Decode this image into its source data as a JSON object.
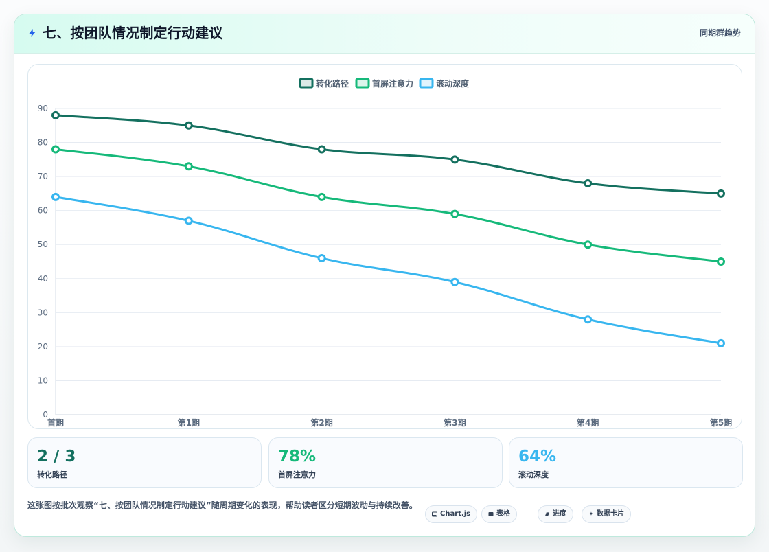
{
  "header": {
    "title": "七、按团队情况制定行动建议",
    "right_text": "同期群趋势",
    "icon": "lightning-icon"
  },
  "chart_data": {
    "type": "line",
    "categories": [
      "首期",
      "第1期",
      "第2期",
      "第3期",
      "第4期",
      "第5期"
    ],
    "series": [
      {
        "name": "转化路径",
        "color": "#14705f",
        "values": [
          88,
          85,
          78,
          75,
          68,
          65
        ]
      },
      {
        "name": "首屏注意力",
        "color": "#16b97a",
        "values": [
          78,
          73,
          64,
          59,
          50,
          45
        ]
      },
      {
        "name": "滚动深度",
        "color": "#38b6ef",
        "values": [
          64,
          57,
          46,
          39,
          28,
          21
        ]
      }
    ],
    "yticks": [
      "0",
      "10",
      "20",
      "30",
      "40",
      "50",
      "60",
      "70",
      "80",
      "90"
    ],
    "ylim": [
      0,
      90
    ],
    "grid": true,
    "legend_position": "top-center",
    "title": "",
    "xlabel": "",
    "ylabel": ""
  },
  "metrics": [
    {
      "value": "2 / 3",
      "label": "转化路径",
      "color": "#14705f"
    },
    {
      "value": "78%",
      "label": "首屏注意力",
      "color": "#16b97a"
    },
    {
      "value": "64%",
      "label": "滚动深度",
      "color": "#38b6ef"
    }
  ],
  "description": "这张图按批次观察“七、按团队情况制定行动建议”随周期变化的表现，帮助读者区分短期波动与持续改善。",
  "tags": [
    {
      "label": "Chart.js",
      "icon": "chart-icon"
    },
    {
      "label": "表格",
      "icon": "table-icon"
    },
    {
      "label": "进度",
      "icon": "progress-icon"
    },
    {
      "label": "数据卡片",
      "icon": "sparkle-icon"
    }
  ]
}
